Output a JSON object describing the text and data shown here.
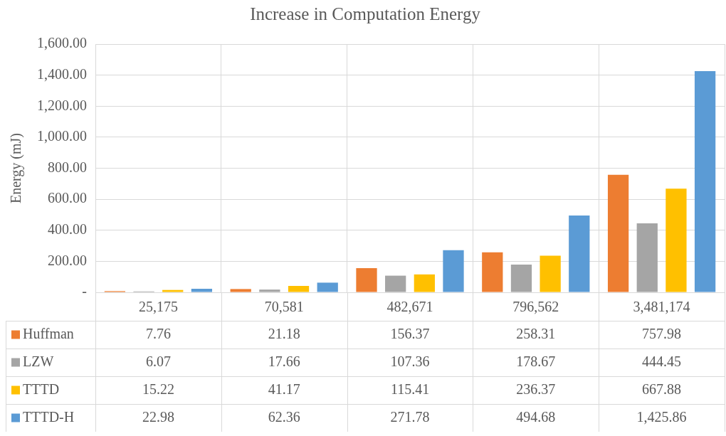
{
  "chart_data": {
    "type": "bar",
    "title": "Increase in Computation Energy",
    "ylabel": "Energy (mJ)",
    "categories": [
      "25,175",
      "70,581",
      "482,671",
      "796,562",
      "3,481,174"
    ],
    "series": [
      {
        "name": "Huffman",
        "color": "#ed7d31",
        "values": [
          7.76,
          21.18,
          156.37,
          258.31,
          757.98
        ],
        "value_labels": [
          "7.76",
          "21.18",
          "156.37",
          "258.31",
          "757.98"
        ]
      },
      {
        "name": "LZW",
        "color": "#a5a5a5",
        "values": [
          6.07,
          17.66,
          107.36,
          178.67,
          444.45
        ],
        "value_labels": [
          "6.07",
          "17.66",
          "107.36",
          "178.67",
          "444.45"
        ]
      },
      {
        "name": "TTTD",
        "color": "#ffc000",
        "values": [
          15.22,
          41.17,
          115.41,
          236.37,
          667.88
        ],
        "value_labels": [
          "15.22",
          "41.17",
          "115.41",
          "236.37",
          "667.88"
        ]
      },
      {
        "name": "TTTD-H",
        "color": "#5b9bd5",
        "values": [
          22.98,
          62.36,
          271.78,
          494.68,
          1425.86
        ],
        "value_labels": [
          "22.98",
          "62.36",
          "271.78",
          "494.68",
          "1,425.86"
        ]
      }
    ],
    "ylim": [
      0,
      1600
    ],
    "yticks": [
      {
        "value": 0,
        "label": "-"
      },
      {
        "value": 200,
        "label": "200.00"
      },
      {
        "value": 400,
        "label": "400.00"
      },
      {
        "value": 600,
        "label": "600.00"
      },
      {
        "value": 800,
        "label": "800.00"
      },
      {
        "value": 1000,
        "label": "1,000.00"
      },
      {
        "value": 1200,
        "label": "1,200.00"
      },
      {
        "value": 1400,
        "label": "1,400.00"
      },
      {
        "value": 1600,
        "label": "1,600.00"
      }
    ],
    "grid": true,
    "legend": "bottom left"
  }
}
